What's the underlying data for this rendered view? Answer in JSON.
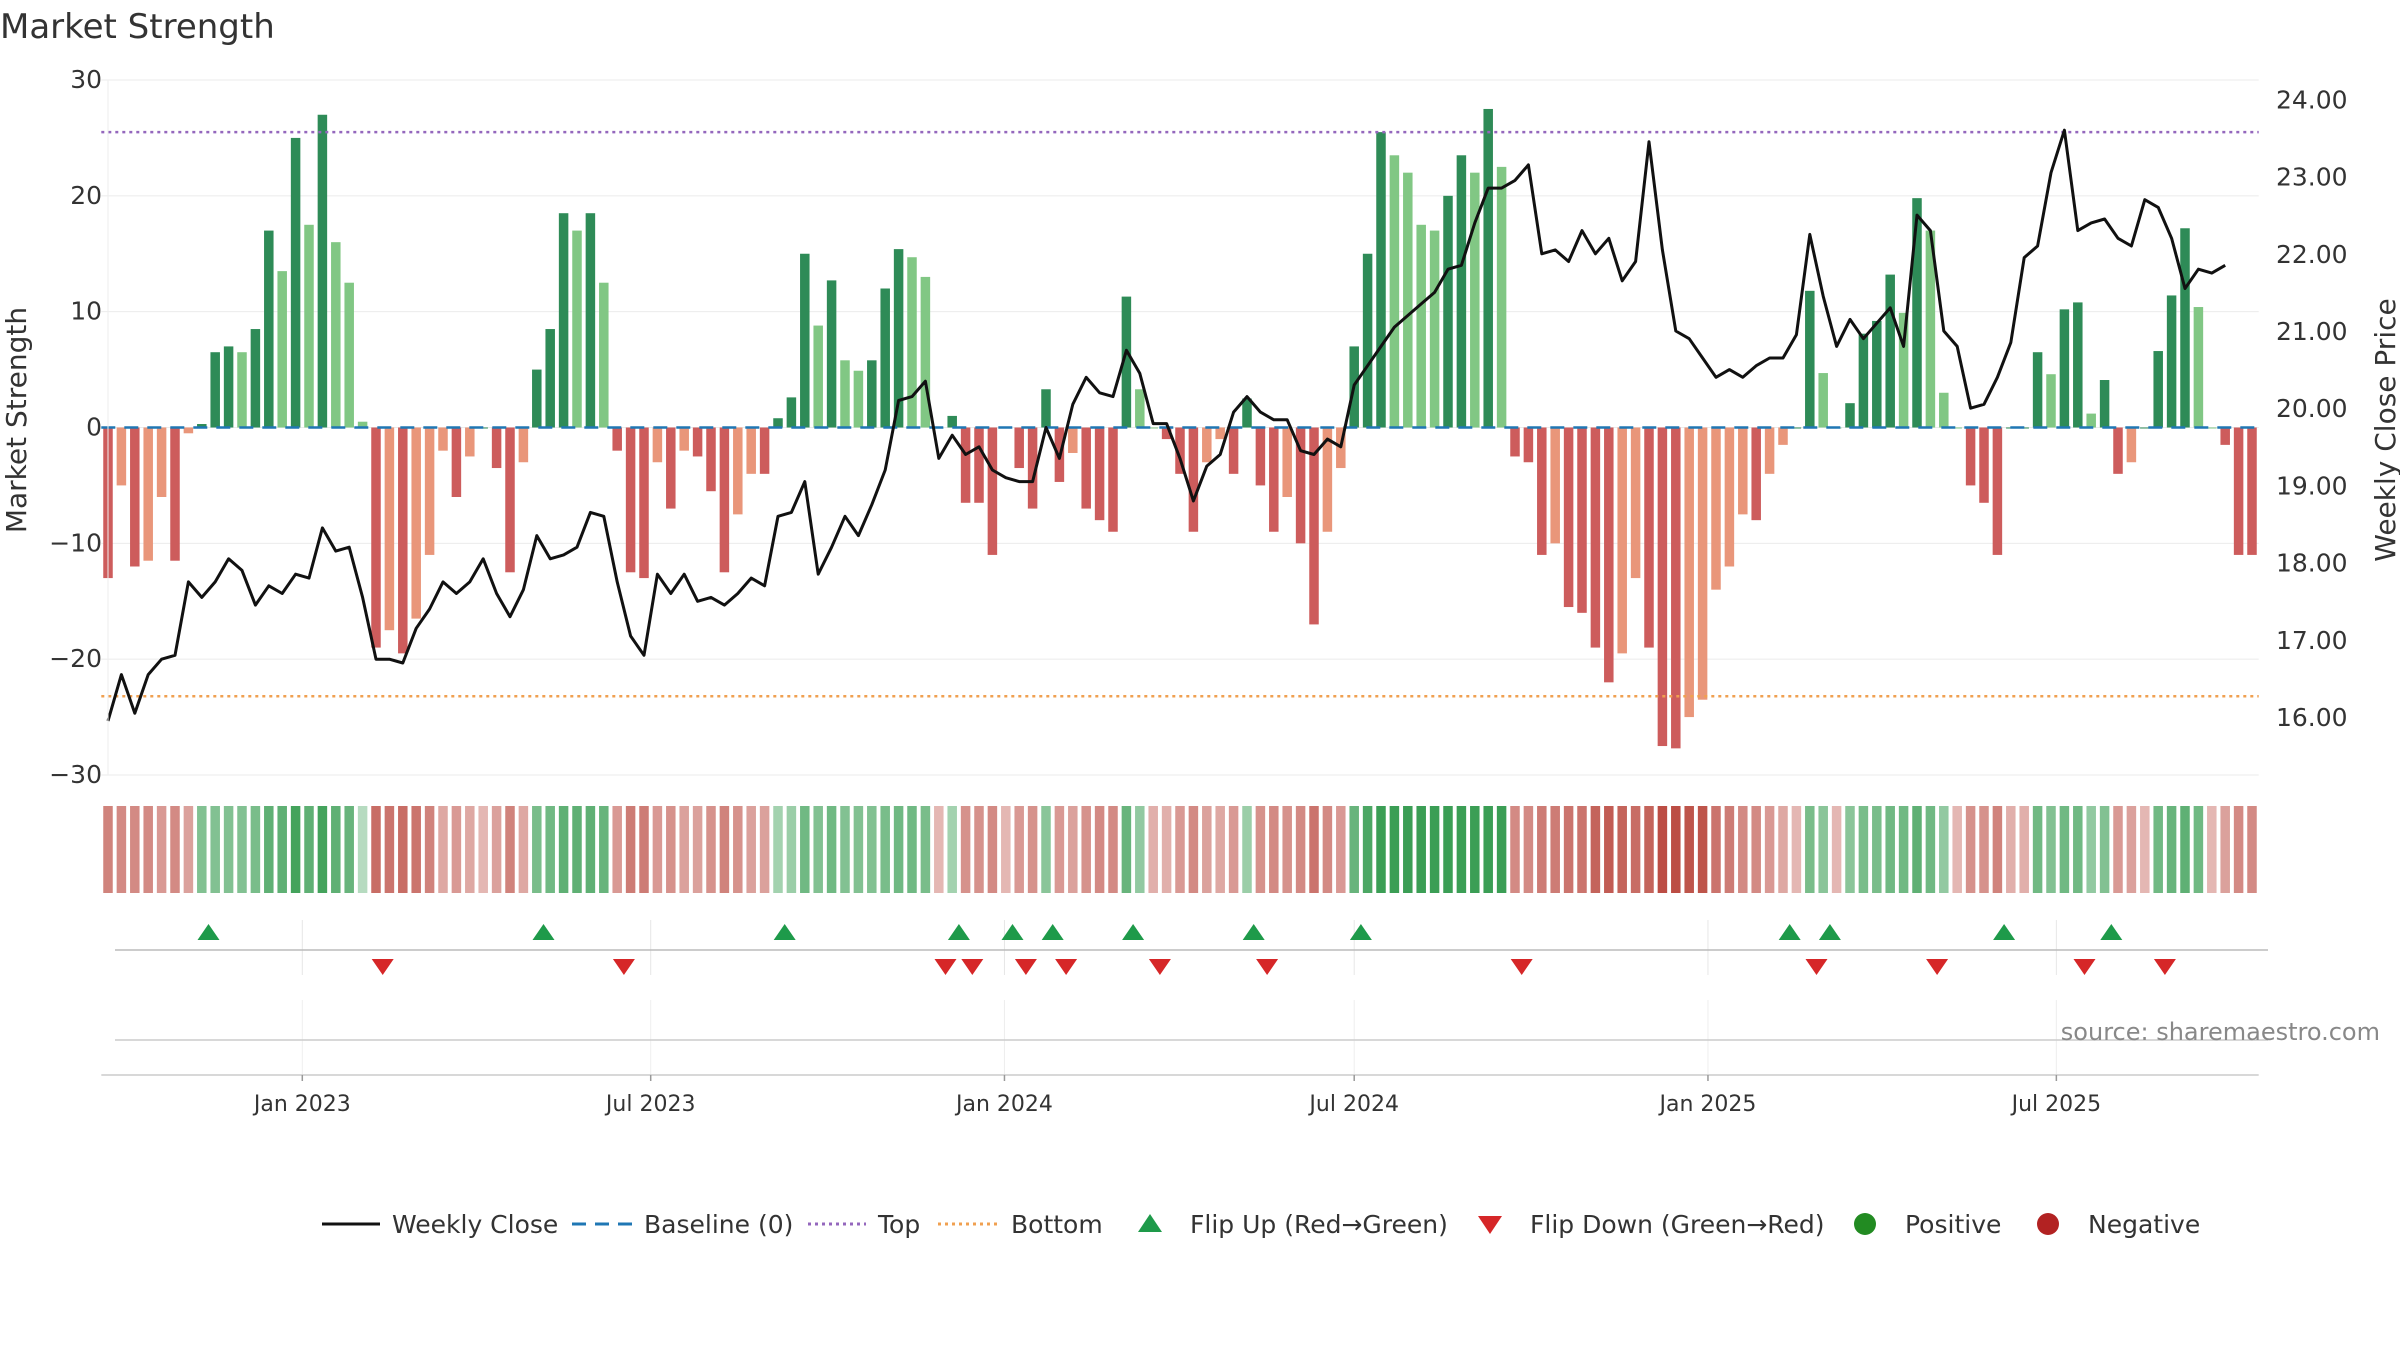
{
  "chart_data": {
    "type": "bar",
    "title": "Market Strength",
    "ylabel_left": "Market Strength",
    "ylabel_right": "Weekly Close Price",
    "source": "source: sharemaestro.com",
    "left_axis": {
      "ylim": [
        -30,
        30
      ],
      "ticks": [
        30,
        20,
        10,
        0,
        -10,
        -20,
        -30
      ],
      "tick_labels": [
        "30",
        "20",
        "10",
        "0",
        "−10",
        "−20",
        "−30"
      ]
    },
    "right_axis": {
      "ylim": [
        15.25,
        24.25
      ],
      "ticks": [
        24,
        23,
        22,
        21,
        20,
        19,
        18,
        17,
        16
      ],
      "tick_labels": [
        "24.00",
        "23.00",
        "22.00",
        "21.00",
        "20.00",
        "19.00",
        "18.00",
        "17.00",
        "16.00"
      ]
    },
    "x_ticks": [
      {
        "label": "Jan 2023",
        "week": 14.5
      },
      {
        "label": "Jul 2023",
        "week": 40.5
      },
      {
        "label": "Jan 2024",
        "week": 66.9
      },
      {
        "label": "Jul 2024",
        "week": 93
      },
      {
        "label": "Jan 2025",
        "week": 119.4
      },
      {
        "label": "Jul 2025",
        "week": 145.4
      }
    ],
    "top_level": 25.5,
    "bottom_level": -23.2,
    "baseline": 0,
    "strength": [
      -13,
      -5,
      -12,
      -11.5,
      -6,
      -11.5,
      -0.5,
      0.3,
      6.5,
      7,
      6.5,
      8.5,
      17,
      13.5,
      25,
      17.5,
      27,
      16,
      12.5,
      0.5,
      -19,
      -17.5,
      -19.5,
      -16.5,
      -11,
      -2,
      -6,
      -2.5,
      0,
      -3.5,
      -12.5,
      -3,
      5,
      8.5,
      18.5,
      17,
      18.5,
      12.5,
      -2,
      -12.5,
      -13,
      -3,
      -7,
      -2,
      -2.5,
      -5.5,
      -12.5,
      -7.5,
      -4,
      -4,
      0.8,
      2.6,
      15,
      8.8,
      12.7,
      5.8,
      4.9,
      5.8,
      12,
      15.4,
      14.7,
      13,
      0,
      1,
      -6.5,
      -6.5,
      -11,
      0,
      -3.5,
      -7,
      3.3,
      -4.7,
      -2.2,
      -7,
      -8,
      -9,
      11.3,
      3.3,
      0,
      -1,
      -4,
      -9,
      -3,
      -1,
      -4,
      2.5,
      -5,
      -9,
      -6,
      -10,
      -17,
      -9,
      -3.5,
      7,
      15,
      25.5,
      23.5,
      22,
      17.5,
      17,
      20,
      23.5,
      22,
      27.5,
      22.5,
      -2.5,
      -3,
      -11,
      -10,
      -15.5,
      -16,
      -19,
      -22,
      -19.5,
      -13,
      -19,
      -27.5,
      -27.7,
      -25,
      -23.5,
      -14,
      -12,
      -7.5,
      -8,
      -4,
      -1.5,
      0,
      11.8,
      4.7,
      0,
      2.1,
      8.1,
      9.2,
      13.2,
      9.9,
      19.8,
      17,
      3,
      0,
      -5,
      -6.5,
      -11,
      0,
      0,
      6.5,
      4.6,
      10.2,
      10.8,
      1.2,
      4.1,
      -4,
      -3,
      0,
      6.6,
      11.4,
      17.2,
      10.4,
      0,
      -1.5,
      -11,
      -11
    ],
    "close": [
      15.95,
      16.55,
      16.05,
      16.55,
      16.75,
      16.8,
      17.75,
      17.55,
      17.75,
      18.05,
      17.9,
      17.45,
      17.7,
      17.6,
      17.85,
      17.8,
      18.45,
      18.15,
      18.2,
      17.55,
      16.75,
      16.75,
      16.7,
      17.15,
      17.4,
      17.75,
      17.6,
      17.75,
      18.05,
      17.6,
      17.3,
      17.65,
      18.35,
      18.05,
      18.1,
      18.2,
      18.65,
      18.6,
      17.75,
      17.05,
      16.8,
      17.85,
      17.6,
      17.85,
      17.5,
      17.55,
      17.45,
      17.6,
      17.8,
      17.7,
      18.6,
      18.65,
      19.05,
      17.85,
      18.2,
      18.6,
      18.35,
      18.75,
      19.2,
      20.1,
      20.15,
      20.35,
      19.35,
      19.65,
      19.4,
      19.5,
      19.2,
      19.1,
      19.05,
      19.05,
      19.75,
      19.35,
      20.05,
      20.4,
      20.2,
      20.15,
      20.75,
      20.45,
      19.8,
      19.8,
      19.35,
      18.8,
      19.25,
      19.4,
      19.95,
      20.15,
      19.95,
      19.85,
      19.85,
      19.45,
      19.4,
      19.6,
      19.5,
      20.3,
      20.55,
      20.8,
      21.05,
      21.2,
      21.35,
      21.5,
      21.8,
      21.85,
      22.4,
      22.85,
      22.85,
      22.95,
      23.15,
      22,
      22.05,
      21.9,
      22.3,
      22.0,
      22.2,
      21.65,
      21.9,
      23.45,
      22.05,
      21.0,
      20.9,
      20.65,
      20.4,
      20.5,
      20.4,
      20.55,
      20.65,
      20.65,
      20.95,
      22.25,
      21.45,
      20.8,
      21.15,
      20.9,
      21.1,
      21.3,
      20.8,
      22.5,
      22.3,
      21.0,
      20.8,
      20.0,
      20.05,
      20.4,
      20.85,
      21.95,
      22.1,
      23.05,
      23.6,
      22.3,
      22.4,
      22.45,
      22.2,
      22.1,
      22.7,
      22.6,
      22.2,
      21.55,
      21.8,
      21.75,
      21.85
    ],
    "band": [
      -0.6,
      -0.55,
      -0.55,
      -0.55,
      -0.45,
      -0.55,
      -0.4,
      0.5,
      0.5,
      0.5,
      0.5,
      0.55,
      0.7,
      0.7,
      0.85,
      0.7,
      0.85,
      0.7,
      0.65,
      0.2,
      -0.75,
      -0.7,
      -0.75,
      -0.7,
      -0.6,
      -0.35,
      -0.45,
      -0.35,
      -0.25,
      -0.4,
      -0.6,
      -0.35,
      0.55,
      0.6,
      0.7,
      0.7,
      0.7,
      0.65,
      -0.45,
      -0.65,
      -0.65,
      -0.45,
      -0.5,
      -0.4,
      -0.4,
      -0.5,
      -0.6,
      -0.5,
      -0.4,
      -0.4,
      0.3,
      0.35,
      0.6,
      0.5,
      0.6,
      0.5,
      0.5,
      0.5,
      0.55,
      0.6,
      0.6,
      0.55,
      -0.25,
      0.3,
      -0.5,
      -0.5,
      -0.55,
      -0.25,
      -0.45,
      -0.5,
      0.45,
      -0.45,
      -0.4,
      -0.5,
      -0.55,
      -0.55,
      0.65,
      0.4,
      -0.3,
      -0.3,
      -0.45,
      -0.55,
      -0.4,
      -0.35,
      -0.45,
      0.35,
      -0.5,
      -0.55,
      -0.5,
      -0.55,
      -0.7,
      -0.55,
      -0.45,
      0.65,
      0.8,
      0.9,
      0.9,
      0.9,
      0.9,
      0.9,
      0.9,
      0.9,
      0.9,
      0.9,
      0.9,
      -0.55,
      -0.55,
      -0.65,
      -0.65,
      -0.7,
      -0.7,
      -0.8,
      -0.85,
      -0.8,
      -0.75,
      -0.8,
      -0.95,
      -0.95,
      -0.9,
      -0.9,
      -0.7,
      -0.65,
      -0.55,
      -0.55,
      -0.45,
      -0.35,
      -0.25,
      0.55,
      0.45,
      -0.25,
      0.45,
      0.55,
      0.55,
      0.6,
      0.6,
      0.7,
      0.6,
      0.4,
      -0.25,
      -0.5,
      -0.5,
      -0.6,
      -0.3,
      -0.3,
      0.6,
      0.5,
      0.6,
      0.6,
      0.4,
      0.5,
      -0.45,
      -0.4,
      -0.25,
      0.6,
      0.65,
      0.7,
      0.6,
      -0.25,
      -0.4,
      -0.55,
      -0.55
    ],
    "flips_up": [
      7.5,
      32.5,
      50.5,
      63.5,
      67.5,
      70.5,
      76.5,
      85.5,
      93.5,
      125.5,
      128.5,
      141.5,
      149.5
    ],
    "flips_down": [
      20.5,
      38.5,
      62.5,
      64.5,
      68.5,
      71.5,
      78.5,
      86.5,
      105.5,
      127.5,
      136.5,
      147.5,
      153.5
    ],
    "colors": {
      "pos_strong": "#2e8b57",
      "pos_weak": "#81c784",
      "neg_strong": "#cd5c5c",
      "neg_weak": "#e9967a",
      "close_line": "#111111",
      "baseline": "#1f77b4",
      "top": "#9467bd",
      "bottom": "#f0a050",
      "flip_up": "#1e9a4a",
      "flip_down": "#d62728",
      "positive": "#228b22",
      "negative": "#b22222"
    },
    "legend": [
      {
        "key": "weekly-close",
        "label": "Weekly Close"
      },
      {
        "key": "baseline",
        "label": "Baseline (0)"
      },
      {
        "key": "top",
        "label": "Top"
      },
      {
        "key": "bottom",
        "label": "Bottom"
      },
      {
        "key": "flip-up",
        "label": "Flip Up (Red→Green)"
      },
      {
        "key": "flip-down",
        "label": "Flip Down (Green→Red)"
      },
      {
        "key": "positive",
        "label": "Positive"
      },
      {
        "key": "negative",
        "label": "Negative"
      }
    ]
  }
}
